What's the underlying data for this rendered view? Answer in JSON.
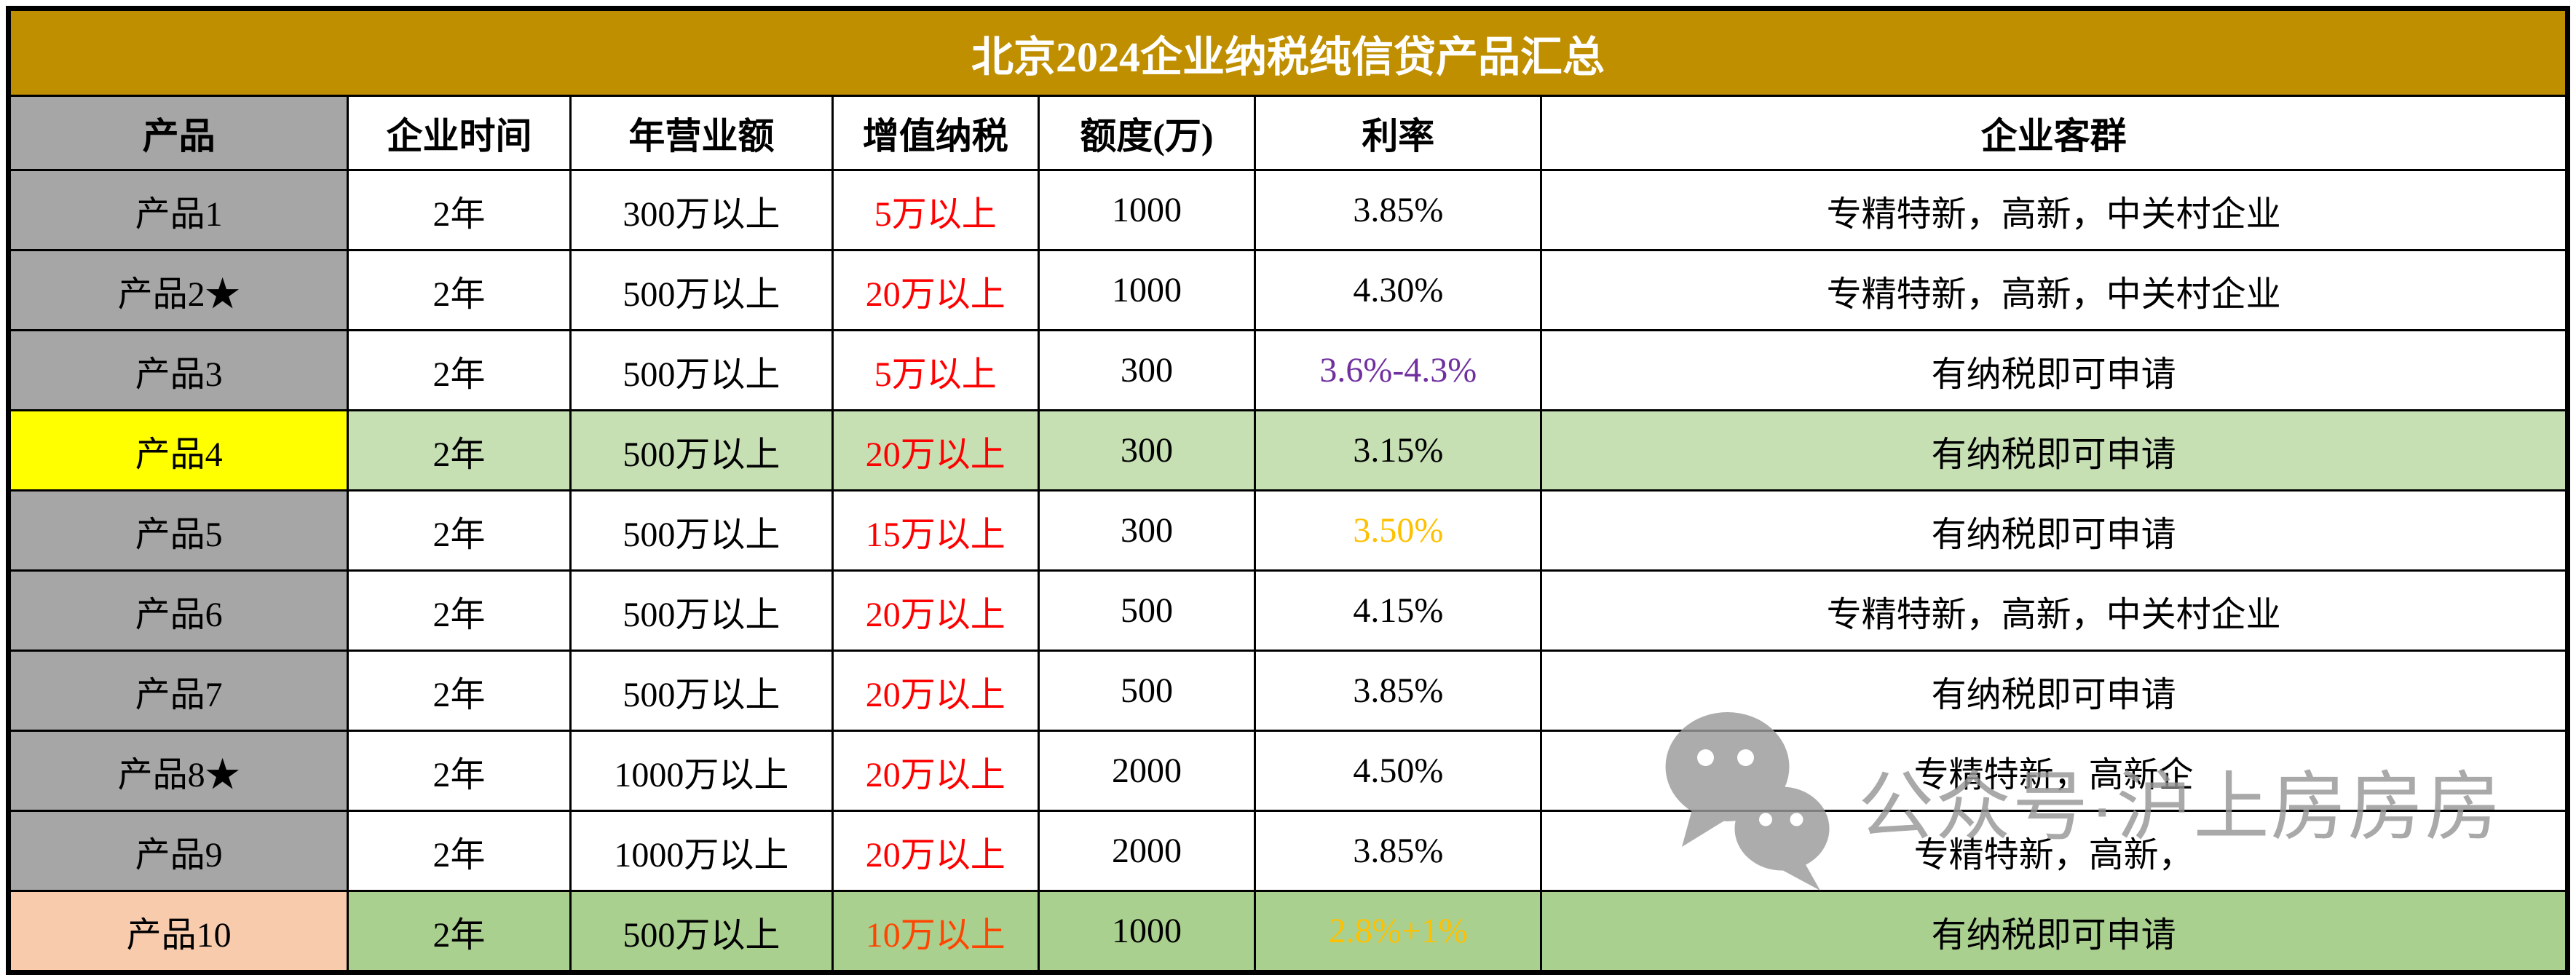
{
  "title": "北京2024企业纳税纯信贷产品汇总",
  "columns": [
    "产品",
    "企业时间",
    "年营业额",
    "增值纳税",
    "额度(万)",
    "利率",
    "企业客群"
  ],
  "rows": [
    {
      "product": "产品1",
      "product_bg": "gray",
      "row_bg": "white",
      "years": "2年",
      "revenue": "300万以上",
      "tax": "5万以上",
      "tax_color": "red",
      "quota": "1000",
      "rate": "3.85%",
      "rate_color": "black",
      "audience": "专精特新，高新，中关村企业"
    },
    {
      "product": "产品2★",
      "product_bg": "gray",
      "row_bg": "white",
      "years": "2年",
      "revenue": "500万以上",
      "tax": "20万以上",
      "tax_color": "red",
      "quota": "1000",
      "rate": "4.30%",
      "rate_color": "black",
      "audience": "专精特新，高新，中关村企业"
    },
    {
      "product": "产品3",
      "product_bg": "gray",
      "row_bg": "white",
      "years": "2年",
      "revenue": "500万以上",
      "tax": "5万以上",
      "tax_color": "red",
      "quota": "300",
      "rate": "3.6%-4.3%",
      "rate_color": "purple",
      "audience": "有纳税即可申请"
    },
    {
      "product": "产品4",
      "product_bg": "yellow",
      "row_bg": "green_light",
      "years": "2年",
      "revenue": "500万以上",
      "tax": "20万以上",
      "tax_color": "red",
      "quota": "300",
      "rate": "3.15%",
      "rate_color": "black",
      "audience": "有纳税即可申请"
    },
    {
      "product": "产品5",
      "product_bg": "gray",
      "row_bg": "white",
      "years": "2年",
      "revenue": "500万以上",
      "tax": "15万以上",
      "tax_color": "red",
      "quota": "300",
      "rate": "3.50%",
      "rate_color": "orange",
      "audience": "有纳税即可申请"
    },
    {
      "product": "产品6",
      "product_bg": "gray",
      "row_bg": "white",
      "years": "2年",
      "revenue": "500万以上",
      "tax": "20万以上",
      "tax_color": "red",
      "quota": "500",
      "rate": "4.15%",
      "rate_color": "black",
      "audience": "专精特新，高新，中关村企业"
    },
    {
      "product": "产品7",
      "product_bg": "gray",
      "row_bg": "white",
      "years": "2年",
      "revenue": "500万以上",
      "tax": "20万以上",
      "tax_color": "red",
      "quota": "500",
      "rate": "3.85%",
      "rate_color": "black",
      "audience": "有纳税即可申请"
    },
    {
      "product": "产品8★",
      "product_bg": "gray",
      "row_bg": "white",
      "years": "2年",
      "revenue": "1000万以上",
      "tax": "20万以上",
      "tax_color": "red",
      "quota": "2000",
      "rate": "4.50%",
      "rate_color": "black",
      "audience": "专精特新，高新企"
    },
    {
      "product": "产品9",
      "product_bg": "gray",
      "row_bg": "white",
      "years": "2年",
      "revenue": "1000万以上",
      "tax": "20万以上",
      "tax_color": "red",
      "quota": "2000",
      "rate": "3.85%",
      "rate_color": "black",
      "audience": "专精特新，高新，"
    },
    {
      "product": "产品10",
      "product_bg": "peach",
      "row_bg": "green_dark",
      "years": "2年",
      "revenue": "500万以上",
      "tax": "10万以上",
      "tax_color": "red_orange",
      "quota": "1000",
      "rate": "2.8%+1%",
      "rate_color": "orange",
      "audience": "有纳税即可申请"
    }
  ],
  "watermark": {
    "icon": "wechat-icon",
    "text": "公众号·沪上房房房"
  },
  "colors": {
    "gold": "#BF8F00",
    "title_text": "#FFFFFF",
    "gray": "#A6A6A6",
    "yellow": "#FFFF00",
    "peach": "#F8CBAD",
    "green_light": "#C6E0B4",
    "green_dark": "#A9D08E",
    "red": "#FF0000",
    "red_orange": "#FF4500",
    "purple": "#7030A0",
    "orange": "#FFC000",
    "black": "#000000",
    "white": "#FFFFFF",
    "border": "#000000",
    "watermark_gray": "#979797"
  }
}
